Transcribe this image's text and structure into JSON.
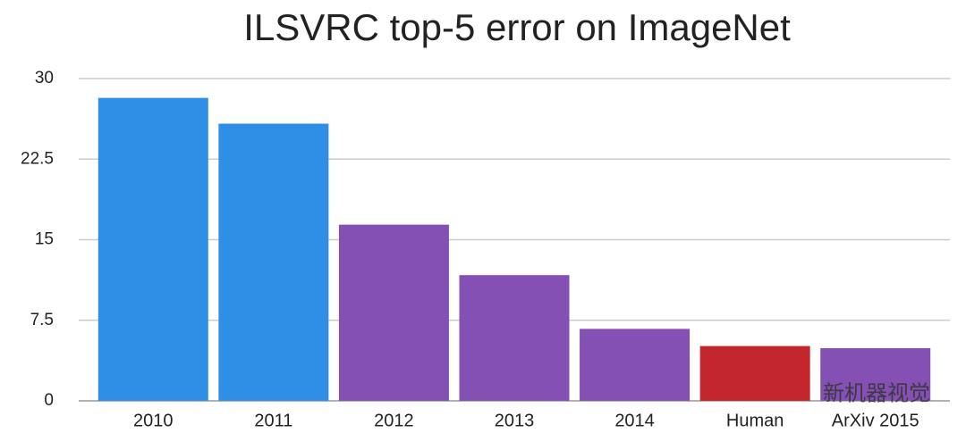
{
  "chart_data": {
    "type": "bar",
    "title": "ILSVRC top-5 error on ImageNet",
    "categories": [
      "2010",
      "2011",
      "2012",
      "2013",
      "2014",
      "Human",
      "ArXiv 2015"
    ],
    "values": [
      28.2,
      25.8,
      16.4,
      11.7,
      6.7,
      5.1,
      4.9
    ],
    "colors": [
      "#2f8ee6",
      "#2f8ee6",
      "#8450b4",
      "#8450b4",
      "#8450b4",
      "#c4262e",
      "#8450b4"
    ],
    "ylim": [
      0,
      30
    ],
    "yticks": [
      0,
      7.5,
      15,
      22.5,
      30
    ],
    "grid": true
  },
  "watermark": "新机器视觉"
}
